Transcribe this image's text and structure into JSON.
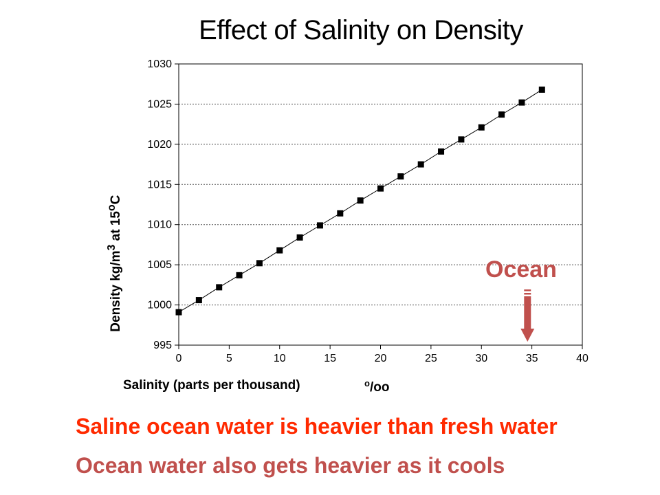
{
  "slide": {
    "title": "Effect of Salinity on Density",
    "x_unit_sup": "o",
    "x_unit_base": "/oo",
    "ocean_label": "Ocean",
    "note_1": "Saline ocean water is heavier than fresh water",
    "note_2": "Ocean water also gets heavier as it cools"
  },
  "colors": {
    "note_1": "#ff2a00",
    "note_2": "#c0504d",
    "ocean_label": "#c0504d",
    "ocean_arrow": "#c0504d",
    "grid": "#555555",
    "marker": "#000000"
  },
  "chart_data": {
    "type": "line",
    "title": "Effect of Salinity on Density",
    "xlabel": "Salinity (parts per thousand)",
    "ylabel": "Density kg/m3 at 15oC",
    "ylabel_parts": {
      "prefix": "Density kg/m",
      "sup1": "3",
      "middle": " at 15",
      "sup2": "o",
      "suffix": "C"
    },
    "xlim": [
      0,
      40
    ],
    "ylim": [
      995,
      1030
    ],
    "x_ticks": [
      0,
      5,
      10,
      15,
      20,
      25,
      30,
      35,
      40
    ],
    "y_ticks": [
      995,
      1000,
      1005,
      1010,
      1015,
      1020,
      1025,
      1030
    ],
    "gridlines": "horizontal dotted",
    "annotation": {
      "text": "Ocean",
      "x": 34.5
    },
    "series": [
      {
        "name": "Density",
        "x": [
          0,
          2,
          4,
          6,
          8,
          10,
          12,
          14,
          16,
          18,
          20,
          22,
          24,
          26,
          28,
          30,
          32,
          34,
          36
        ],
        "y": [
          999.1,
          1000.6,
          1002.2,
          1003.7,
          1005.2,
          1006.8,
          1008.4,
          1009.9,
          1011.4,
          1013.0,
          1014.5,
          1016.0,
          1017.5,
          1019.1,
          1020.6,
          1022.1,
          1023.7,
          1025.2,
          1026.8
        ]
      }
    ]
  }
}
